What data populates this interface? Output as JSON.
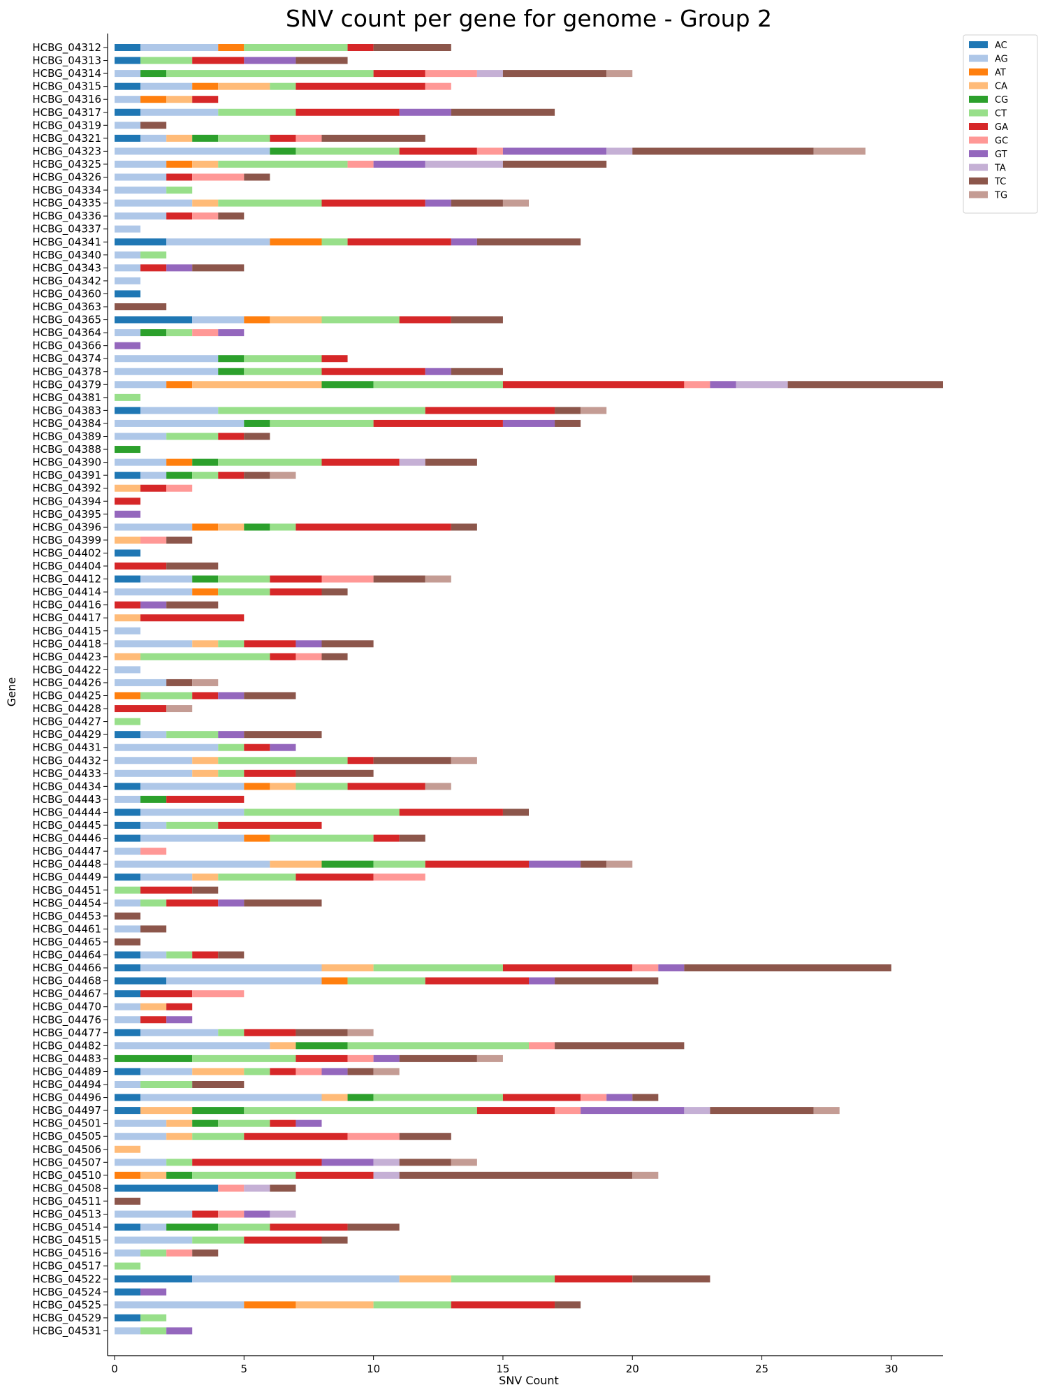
{
  "chart_data": {
    "type": "bar",
    "orientation": "horizontal",
    "stacked": true,
    "title": "SNV count per gene for genome - Group 2",
    "xlabel": "SNV Count",
    "ylabel": "Gene",
    "xlim": [
      0,
      32
    ],
    "xticks": [
      0,
      5,
      10,
      15,
      20,
      25,
      30
    ],
    "grid": false,
    "legend_position": "top-right",
    "series_names": [
      "AC",
      "AG",
      "AT",
      "CA",
      "CG",
      "CT",
      "GA",
      "GC",
      "GT",
      "TA",
      "TC",
      "TG"
    ],
    "colors": [
      "#1f77b4",
      "#aec7e8",
      "#ff7f0e",
      "#ffbb78",
      "#2ca02c",
      "#98df8a",
      "#d62728",
      "#ff9896",
      "#9467bd",
      "#c5b0d5",
      "#8c564b",
      "#c49c94"
    ],
    "genes": [
      "HCBG_04312",
      "HCBG_04313",
      "HCBG_04314",
      "HCBG_04315",
      "HCBG_04316",
      "HCBG_04317",
      "HCBG_04319",
      "HCBG_04321",
      "HCBG_04323",
      "HCBG_04325",
      "HCBG_04326",
      "HCBG_04334",
      "HCBG_04335",
      "HCBG_04336",
      "HCBG_04337",
      "HCBG_04341",
      "HCBG_04340",
      "HCBG_04343",
      "HCBG_04342",
      "HCBG_04360",
      "HCBG_04363",
      "HCBG_04365",
      "HCBG_04364",
      "HCBG_04366",
      "HCBG_04374",
      "HCBG_04378",
      "HCBG_04379",
      "HCBG_04381",
      "HCBG_04383",
      "HCBG_04384",
      "HCBG_04389",
      "HCBG_04388",
      "HCBG_04390",
      "HCBG_04391",
      "HCBG_04392",
      "HCBG_04394",
      "HCBG_04395",
      "HCBG_04396",
      "HCBG_04399",
      "HCBG_04402",
      "HCBG_04404",
      "HCBG_04412",
      "HCBG_04414",
      "HCBG_04416",
      "HCBG_04417",
      "HCBG_04415",
      "HCBG_04418",
      "HCBG_04423",
      "HCBG_04422",
      "HCBG_04426",
      "HCBG_04425",
      "HCBG_04428",
      "HCBG_04427",
      "HCBG_04429",
      "HCBG_04431",
      "HCBG_04432",
      "HCBG_04433",
      "HCBG_04434",
      "HCBG_04443",
      "HCBG_04444",
      "HCBG_04445",
      "HCBG_04446",
      "HCBG_04447",
      "HCBG_04448",
      "HCBG_04449",
      "HCBG_04451",
      "HCBG_04454",
      "HCBG_04453",
      "HCBG_04461",
      "HCBG_04465",
      "HCBG_04464",
      "HCBG_04466",
      "HCBG_04468",
      "HCBG_04467",
      "HCBG_04470",
      "HCBG_04476",
      "HCBG_04477",
      "HCBG_04482",
      "HCBG_04483",
      "HCBG_04489",
      "HCBG_04494",
      "HCBG_04496",
      "HCBG_04497",
      "HCBG_04501",
      "HCBG_04505",
      "HCBG_04506",
      "HCBG_04507",
      "HCBG_04510",
      "HCBG_04508",
      "HCBG_04511",
      "HCBG_04513",
      "HCBG_04514",
      "HCBG_04515",
      "HCBG_04516",
      "HCBG_04517",
      "HCBG_04522",
      "HCBG_04524",
      "HCBG_04525",
      "HCBG_04529",
      "HCBG_04531"
    ],
    "counts": [
      [
        1,
        3,
        1,
        0,
        0,
        4,
        1,
        0,
        0,
        0,
        3,
        0
      ],
      [
        1,
        0,
        0,
        0,
        0,
        2,
        2,
        0,
        2,
        0,
        2,
        0
      ],
      [
        0,
        1,
        0,
        0,
        1,
        8,
        2,
        2,
        0,
        1,
        4,
        1
      ],
      [
        1,
        2,
        1,
        2,
        0,
        1,
        5,
        1,
        0,
        0,
        0,
        0
      ],
      [
        0,
        1,
        1,
        1,
        0,
        0,
        1,
        0,
        0,
        0,
        0,
        0
      ],
      [
        1,
        3,
        0,
        0,
        0,
        3,
        4,
        0,
        2,
        0,
        4,
        0
      ],
      [
        0,
        1,
        0,
        0,
        0,
        0,
        0,
        0,
        0,
        0,
        1,
        0
      ],
      [
        1,
        1,
        0,
        1,
        1,
        2,
        1,
        1,
        0,
        0,
        4,
        0
      ],
      [
        0,
        6,
        0,
        0,
        1,
        4,
        3,
        1,
        4,
        1,
        7,
        2
      ],
      [
        0,
        2,
        1,
        1,
        0,
        5,
        0,
        1,
        2,
        3,
        4,
        0
      ],
      [
        0,
        2,
        0,
        0,
        0,
        0,
        1,
        2,
        0,
        0,
        1,
        0
      ],
      [
        0,
        2,
        0,
        0,
        0,
        1,
        0,
        0,
        0,
        0,
        0,
        0
      ],
      [
        0,
        3,
        0,
        1,
        0,
        4,
        4,
        0,
        1,
        0,
        2,
        1
      ],
      [
        0,
        2,
        0,
        0,
        0,
        0,
        1,
        1,
        0,
        0,
        1,
        0
      ],
      [
        0,
        1,
        0,
        0,
        0,
        0,
        0,
        0,
        0,
        0,
        0,
        0
      ],
      [
        2,
        4,
        2,
        0,
        0,
        1,
        4,
        0,
        1,
        0,
        4,
        0
      ],
      [
        0,
        1,
        0,
        0,
        0,
        1,
        0,
        0,
        0,
        0,
        0,
        0
      ],
      [
        0,
        1,
        0,
        0,
        0,
        0,
        1,
        0,
        1,
        0,
        2,
        0
      ],
      [
        0,
        1,
        0,
        0,
        0,
        0,
        0,
        0,
        0,
        0,
        0,
        0
      ],
      [
        1,
        0,
        0,
        0,
        0,
        0,
        0,
        0,
        0,
        0,
        0,
        0
      ],
      [
        0,
        0,
        0,
        0,
        0,
        0,
        0,
        0,
        0,
        0,
        2,
        0
      ],
      [
        3,
        2,
        1,
        2,
        0,
        3,
        2,
        0,
        0,
        0,
        2,
        0
      ],
      [
        0,
        1,
        0,
        0,
        1,
        1,
        0,
        1,
        1,
        0,
        0,
        0
      ],
      [
        0,
        0,
        0,
        0,
        0,
        0,
        0,
        0,
        1,
        0,
        0,
        0
      ],
      [
        0,
        4,
        0,
        0,
        1,
        3,
        1,
        0,
        0,
        0,
        0,
        0
      ],
      [
        0,
        4,
        0,
        0,
        1,
        3,
        4,
        0,
        1,
        0,
        2,
        0
      ],
      [
        0,
        2,
        1,
        5,
        2,
        5,
        7,
        1,
        1,
        2,
        6,
        0
      ],
      [
        0,
        0,
        0,
        0,
        0,
        1,
        0,
        0,
        0,
        0,
        0,
        0
      ],
      [
        1,
        3,
        0,
        0,
        0,
        8,
        5,
        0,
        0,
        0,
        1,
        1
      ],
      [
        0,
        5,
        0,
        0,
        1,
        4,
        5,
        0,
        2,
        0,
        1,
        0
      ],
      [
        0,
        2,
        0,
        0,
        0,
        2,
        1,
        0,
        0,
        0,
        1,
        0
      ],
      [
        0,
        0,
        0,
        0,
        1,
        0,
        0,
        0,
        0,
        0,
        0,
        0
      ],
      [
        0,
        2,
        1,
        0,
        1,
        4,
        3,
        0,
        0,
        1,
        2,
        0
      ],
      [
        1,
        1,
        0,
        0,
        1,
        1,
        1,
        0,
        0,
        0,
        1,
        1
      ],
      [
        0,
        0,
        0,
        1,
        0,
        0,
        1,
        1,
        0,
        0,
        0,
        0
      ],
      [
        0,
        0,
        0,
        0,
        0,
        0,
        1,
        0,
        0,
        0,
        0,
        0
      ],
      [
        0,
        0,
        0,
        0,
        0,
        0,
        0,
        0,
        1,
        0,
        0,
        0
      ],
      [
        0,
        3,
        1,
        1,
        1,
        1,
        6,
        0,
        0,
        0,
        1,
        0
      ],
      [
        0,
        0,
        0,
        1,
        0,
        0,
        0,
        1,
        0,
        0,
        1,
        0
      ],
      [
        1,
        0,
        0,
        0,
        0,
        0,
        0,
        0,
        0,
        0,
        0,
        0
      ],
      [
        0,
        0,
        0,
        0,
        0,
        0,
        2,
        0,
        0,
        0,
        2,
        0
      ],
      [
        1,
        2,
        0,
        0,
        1,
        2,
        2,
        2,
        0,
        0,
        2,
        1
      ],
      [
        0,
        3,
        1,
        0,
        0,
        2,
        2,
        0,
        0,
        0,
        1,
        0
      ],
      [
        0,
        0,
        0,
        0,
        0,
        0,
        1,
        0,
        1,
        0,
        2,
        0
      ],
      [
        0,
        0,
        0,
        1,
        0,
        0,
        4,
        0,
        0,
        0,
        0,
        0
      ],
      [
        0,
        1,
        0,
        0,
        0,
        0,
        0,
        0,
        0,
        0,
        0,
        0
      ],
      [
        0,
        3,
        0,
        1,
        0,
        1,
        2,
        0,
        1,
        0,
        2,
        0
      ],
      [
        0,
        0,
        0,
        1,
        0,
        5,
        1,
        1,
        0,
        0,
        1,
        0
      ],
      [
        0,
        1,
        0,
        0,
        0,
        0,
        0,
        0,
        0,
        0,
        0,
        0
      ],
      [
        0,
        2,
        0,
        0,
        0,
        0,
        0,
        0,
        0,
        0,
        1,
        1
      ],
      [
        0,
        0,
        1,
        0,
        0,
        2,
        1,
        0,
        1,
        0,
        2,
        0
      ],
      [
        0,
        0,
        0,
        0,
        0,
        0,
        2,
        0,
        0,
        0,
        0,
        1
      ],
      [
        0,
        0,
        0,
        0,
        0,
        1,
        0,
        0,
        0,
        0,
        0,
        0
      ],
      [
        1,
        1,
        0,
        0,
        0,
        2,
        0,
        0,
        1,
        0,
        3,
        0
      ],
      [
        0,
        4,
        0,
        0,
        0,
        1,
        1,
        0,
        1,
        0,
        0,
        0
      ],
      [
        0,
        3,
        0,
        1,
        0,
        5,
        1,
        0,
        0,
        0,
        3,
        1
      ],
      [
        0,
        3,
        0,
        1,
        0,
        1,
        2,
        0,
        0,
        0,
        3,
        0
      ],
      [
        1,
        4,
        1,
        1,
        0,
        2,
        3,
        0,
        0,
        0,
        0,
        1
      ],
      [
        0,
        1,
        0,
        0,
        1,
        0,
        3,
        0,
        0,
        0,
        0,
        0
      ],
      [
        1,
        4,
        0,
        0,
        0,
        6,
        4,
        0,
        0,
        0,
        1,
        0
      ],
      [
        1,
        1,
        0,
        0,
        0,
        2,
        4,
        0,
        0,
        0,
        0,
        0
      ],
      [
        1,
        4,
        1,
        0,
        0,
        4,
        1,
        0,
        0,
        0,
        1,
        0
      ],
      [
        0,
        1,
        0,
        0,
        0,
        0,
        0,
        1,
        0,
        0,
        0,
        0
      ],
      [
        0,
        6,
        0,
        2,
        2,
        2,
        4,
        0,
        2,
        0,
        1,
        1
      ],
      [
        1,
        2,
        0,
        1,
        0,
        3,
        3,
        2,
        0,
        0,
        0,
        0
      ],
      [
        0,
        0,
        0,
        0,
        0,
        1,
        2,
        0,
        0,
        0,
        1,
        0
      ],
      [
        0,
        1,
        0,
        0,
        0,
        1,
        2,
        0,
        1,
        0,
        3,
        0
      ],
      [
        0,
        0,
        0,
        0,
        0,
        0,
        0,
        0,
        0,
        0,
        1,
        0
      ],
      [
        0,
        1,
        0,
        0,
        0,
        0,
        0,
        0,
        0,
        0,
        1,
        0
      ],
      [
        0,
        0,
        0,
        0,
        0,
        0,
        0,
        0,
        0,
        0,
        1,
        0
      ],
      [
        1,
        1,
        0,
        0,
        0,
        1,
        1,
        0,
        0,
        0,
        1,
        0
      ],
      [
        1,
        7,
        0,
        2,
        0,
        5,
        5,
        1,
        1,
        0,
        8,
        0
      ],
      [
        2,
        6,
        1,
        0,
        0,
        3,
        4,
        0,
        1,
        0,
        4,
        0
      ],
      [
        1,
        0,
        0,
        0,
        0,
        0,
        2,
        2,
        0,
        0,
        0,
        0
      ],
      [
        0,
        1,
        0,
        1,
        0,
        0,
        1,
        0,
        0,
        0,
        0,
        0
      ],
      [
        0,
        1,
        0,
        0,
        0,
        0,
        1,
        0,
        1,
        0,
        0,
        0
      ],
      [
        1,
        3,
        0,
        0,
        0,
        1,
        2,
        0,
        0,
        0,
        2,
        1
      ],
      [
        0,
        6,
        0,
        1,
        2,
        7,
        0,
        1,
        0,
        0,
        5,
        0
      ],
      [
        0,
        0,
        0,
        0,
        3,
        4,
        2,
        1,
        1,
        0,
        3,
        1
      ],
      [
        1,
        2,
        0,
        2,
        0,
        1,
        1,
        1,
        1,
        0,
        1,
        1
      ],
      [
        0,
        1,
        0,
        0,
        0,
        2,
        0,
        0,
        0,
        0,
        2,
        0
      ],
      [
        1,
        7,
        0,
        1,
        1,
        5,
        3,
        1,
        1,
        0,
        1,
        0
      ],
      [
        1,
        0,
        0,
        2,
        2,
        9,
        3,
        1,
        4,
        1,
        4,
        1
      ],
      [
        0,
        2,
        0,
        1,
        1,
        2,
        1,
        0,
        1,
        0,
        0,
        0
      ],
      [
        0,
        2,
        0,
        1,
        0,
        2,
        4,
        2,
        0,
        0,
        2,
        0
      ],
      [
        0,
        0,
        0,
        1,
        0,
        0,
        0,
        0,
        0,
        0,
        0,
        0
      ],
      [
        0,
        2,
        0,
        0,
        0,
        1,
        5,
        0,
        2,
        1,
        2,
        1
      ],
      [
        0,
        0,
        1,
        1,
        1,
        4,
        3,
        0,
        0,
        1,
        9,
        1
      ],
      [
        4,
        0,
        0,
        0,
        0,
        0,
        0,
        1,
        0,
        1,
        1,
        0
      ],
      [
        0,
        0,
        0,
        0,
        0,
        0,
        0,
        0,
        0,
        0,
        1,
        0
      ],
      [
        0,
        3,
        0,
        0,
        0,
        0,
        1,
        1,
        1,
        1,
        0,
        0
      ],
      [
        1,
        1,
        0,
        0,
        2,
        2,
        3,
        0,
        0,
        0,
        2,
        0
      ],
      [
        0,
        3,
        0,
        0,
        0,
        2,
        3,
        0,
        0,
        0,
        1,
        0
      ],
      [
        0,
        1,
        0,
        0,
        0,
        1,
        0,
        1,
        0,
        0,
        1,
        0
      ],
      [
        0,
        0,
        0,
        0,
        0,
        1,
        0,
        0,
        0,
        0,
        0,
        0
      ],
      [
        3,
        8,
        0,
        2,
        0,
        4,
        3,
        0,
        0,
        0,
        3,
        0
      ],
      [
        1,
        0,
        0,
        0,
        0,
        0,
        0,
        0,
        1,
        0,
        0,
        0
      ],
      [
        0,
        5,
        2,
        3,
        0,
        3,
        4,
        0,
        0,
        0,
        1,
        0
      ],
      [
        1,
        0,
        0,
        0,
        0,
        1,
        0,
        0,
        0,
        0,
        0,
        0
      ],
      [
        0,
        1,
        0,
        0,
        0,
        1,
        0,
        0,
        1,
        0,
        0,
        0
      ]
    ]
  }
}
